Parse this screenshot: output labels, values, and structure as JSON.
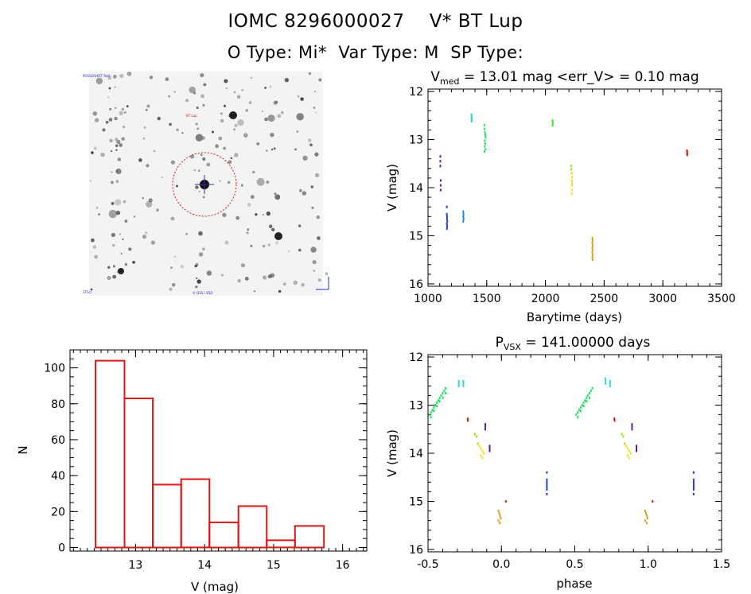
{
  "header": {
    "title": "IOMC 8296000027    V* BT Lup",
    "subtitle": "O Type: Mi*  Var Type: M  SP Type:"
  },
  "chart_data": [
    {
      "id": "light_curve",
      "type": "scatter",
      "title_main": "V",
      "title_sub": "med",
      "title_rest": " = 13.01 mag <err_V> = 0.10 mag",
      "xlabel": "Barytime (days)",
      "ylabel": "V (mag)",
      "xlim": [
        1000,
        3500
      ],
      "ylim": [
        16.05,
        11.95
      ],
      "xticks": [
        1000,
        1500,
        2000,
        2500,
        3000,
        3500
      ],
      "yticks": [
        12,
        13,
        14,
        15,
        16
      ],
      "series": [
        {
          "color": "#5a1a9a",
          "x": [
            1105,
            1105,
            1105,
            1108,
            1108,
            1108
          ],
          "y": [
            13.35,
            13.45,
            13.55,
            13.85,
            13.95,
            14.05
          ]
        },
        {
          "color": "#1e3cc8",
          "x": [
            1160,
            1160,
            1162,
            1162,
            1164,
            1160,
            1163,
            1161
          ],
          "y": [
            14.4,
            14.55,
            14.6,
            14.65,
            14.7,
            14.75,
            14.8,
            14.85
          ]
        },
        {
          "color": "#1f7fd0",
          "x": [
            1300,
            1302,
            1301,
            1303,
            1300
          ],
          "y": [
            14.5,
            14.55,
            14.6,
            14.65,
            14.7
          ]
        },
        {
          "color": "#28d8c8",
          "x": [
            1370,
            1370,
            1372,
            1371,
            1373,
            1370
          ],
          "y": [
            12.48,
            12.52,
            12.55,
            12.58,
            12.6,
            12.62
          ]
        },
        {
          "color": "#22e060",
          "x": [
            1480,
            1482,
            1485,
            1488,
            1490,
            1484,
            1487,
            1483,
            1489,
            1481
          ],
          "y": [
            12.7,
            12.78,
            12.85,
            12.9,
            12.95,
            13.02,
            13.08,
            13.14,
            13.2,
            13.25
          ]
        },
        {
          "color": "#40e030",
          "x": [
            2060,
            2061,
            2062,
            2060
          ],
          "y": [
            12.6,
            12.63,
            12.66,
            12.7
          ]
        },
        {
          "color": "#9ae020",
          "x": [
            2220,
            2221,
            2222
          ],
          "y": [
            13.55,
            13.62,
            13.7
          ]
        },
        {
          "color": "#f0e020",
          "x": [
            2225,
            2226,
            2224,
            2227,
            2225,
            2226,
            2224
          ],
          "y": [
            13.7,
            13.78,
            13.85,
            13.9,
            13.95,
            14.05,
            14.12
          ]
        },
        {
          "color": "#d8a020",
          "x": [
            2400,
            2401,
            2399,
            2402,
            2400,
            2401,
            2399,
            2402,
            2400,
            2401
          ],
          "y": [
            15.05,
            15.1,
            15.15,
            15.2,
            15.25,
            15.3,
            15.35,
            15.4,
            15.45,
            15.5
          ]
        },
        {
          "color": "#d81818",
          "x": [
            3205,
            3207,
            3206,
            3208
          ],
          "y": [
            13.23,
            13.26,
            13.29,
            13.32
          ]
        }
      ]
    },
    {
      "id": "phased",
      "type": "scatter",
      "title_main": "P",
      "title_sub": "VSX",
      "title_rest": " = 141.00000 days",
      "xlabel": "phase",
      "ylabel": "V (mag)",
      "xlim": [
        -0.5,
        1.5
      ],
      "ylim": [
        16.05,
        11.95
      ],
      "xticks": [
        -0.5,
        0.0,
        0.5,
        1.0,
        1.5
      ],
      "xticklabels": [
        "-0.5",
        "0.0",
        "0.5",
        "1.0",
        "1.5"
      ],
      "yticks": [
        12,
        13,
        14,
        15,
        16
      ],
      "series": [
        {
          "color": "#22e060",
          "x": [
            -0.49,
            -0.48,
            -0.47,
            -0.46,
            -0.45,
            -0.44,
            -0.43,
            -0.42,
            -0.41,
            -0.4,
            -0.39,
            -0.38,
            -0.48,
            -0.46,
            -0.44,
            -0.42,
            -0.4,
            -0.38,
            0.51,
            0.52,
            0.53,
            0.54,
            0.55,
            0.56,
            0.57,
            0.58,
            0.59,
            0.6,
            0.61,
            0.62,
            0.52,
            0.54,
            0.56,
            0.58,
            0.6
          ],
          "y": [
            13.2,
            13.15,
            13.1,
            13.05,
            13.0,
            12.95,
            12.9,
            12.85,
            12.8,
            12.75,
            12.7,
            12.65,
            13.25,
            13.12,
            13.02,
            12.92,
            12.85,
            12.75,
            13.2,
            13.15,
            13.1,
            13.05,
            13.0,
            12.95,
            12.9,
            12.85,
            12.8,
            12.75,
            12.7,
            12.65,
            13.25,
            13.12,
            13.02,
            12.92,
            12.85
          ]
        },
        {
          "color": "#28d8c8",
          "x": [
            -0.29,
            -0.29,
            -0.29,
            -0.26,
            -0.26,
            -0.26,
            0.71,
            0.71,
            0.71,
            0.74,
            0.74,
            0.74
          ],
          "y": [
            12.5,
            12.55,
            12.6,
            12.5,
            12.55,
            12.6,
            12.45,
            12.5,
            12.55,
            12.5,
            12.55,
            12.6
          ]
        },
        {
          "color": "#d81818",
          "x": [
            -0.23,
            -0.229,
            0.77,
            0.771,
            0.03,
            1.03
          ],
          "y": [
            13.28,
            13.32,
            13.28,
            13.32,
            15.0,
            15.0
          ]
        },
        {
          "color": "#9ae020",
          "x": [
            -0.18,
            -0.17,
            -0.16,
            0.82,
            0.83,
            0.84
          ],
          "y": [
            13.6,
            13.65,
            13.8,
            13.6,
            13.65,
            13.8
          ]
        },
        {
          "color": "#f0e020",
          "x": [
            -0.15,
            -0.14,
            -0.13,
            -0.12,
            -0.14,
            -0.13,
            0.85,
            0.86,
            0.87,
            0.88,
            0.86,
            0.87
          ],
          "y": [
            13.85,
            13.9,
            13.95,
            14.0,
            14.05,
            14.1,
            13.85,
            13.9,
            13.95,
            14.0,
            14.05,
            14.1
          ]
        },
        {
          "color": "#5a1a9a",
          "x": [
            -0.11,
            -0.11,
            -0.11,
            -0.08,
            -0.08,
            -0.08,
            0.89,
            0.89,
            0.89,
            0.92,
            0.92,
            0.92
          ],
          "y": [
            13.4,
            13.45,
            13.5,
            13.85,
            13.9,
            13.95,
            13.4,
            13.45,
            13.5,
            13.85,
            13.9,
            13.95
          ]
        },
        {
          "color": "#d8a020",
          "x": [
            -0.02,
            -0.015,
            -0.01,
            -0.005,
            -0.02,
            -0.01,
            0.98,
            0.985,
            0.99,
            0.995,
            0.98,
            0.99
          ],
          "y": [
            15.2,
            15.25,
            15.3,
            15.35,
            15.4,
            15.45,
            15.2,
            15.25,
            15.3,
            15.35,
            15.4,
            15.45
          ]
        },
        {
          "color": "#1e3cc8",
          "x": [
            0.31,
            0.31,
            0.31,
            0.31,
            0.31,
            0.31,
            0.31,
            1.31,
            1.31,
            1.31,
            1.31,
            1.31,
            1.31,
            1.31
          ],
          "y": [
            14.4,
            14.55,
            14.6,
            14.65,
            14.7,
            14.75,
            14.85,
            14.4,
            14.55,
            14.6,
            14.65,
            14.7,
            14.75,
            14.85
          ]
        }
      ]
    },
    {
      "id": "histogram",
      "type": "bar",
      "xlabel": "V (mag)",
      "ylabel": "N",
      "xlim": [
        12.05,
        16.35
      ],
      "ylim": [
        -2,
        110
      ],
      "xticks": [
        13,
        14,
        15,
        16
      ],
      "yticks": [
        0,
        20,
        40,
        60,
        80,
        100
      ],
      "bin_edges": [
        12.42,
        12.84,
        13.25,
        13.66,
        14.07,
        14.49,
        14.9,
        15.31,
        15.73
      ],
      "values": [
        104,
        83,
        35,
        38,
        14,
        23,
        4,
        12
      ]
    }
  ],
  "thumbnail": {
    "label_tl": "POSS2/UKST Red",
    "label_tag": "BT Lup",
    "label_bl": "STScI",
    "label_bc": "© DSS / ESO",
    "label_br": "N"
  }
}
